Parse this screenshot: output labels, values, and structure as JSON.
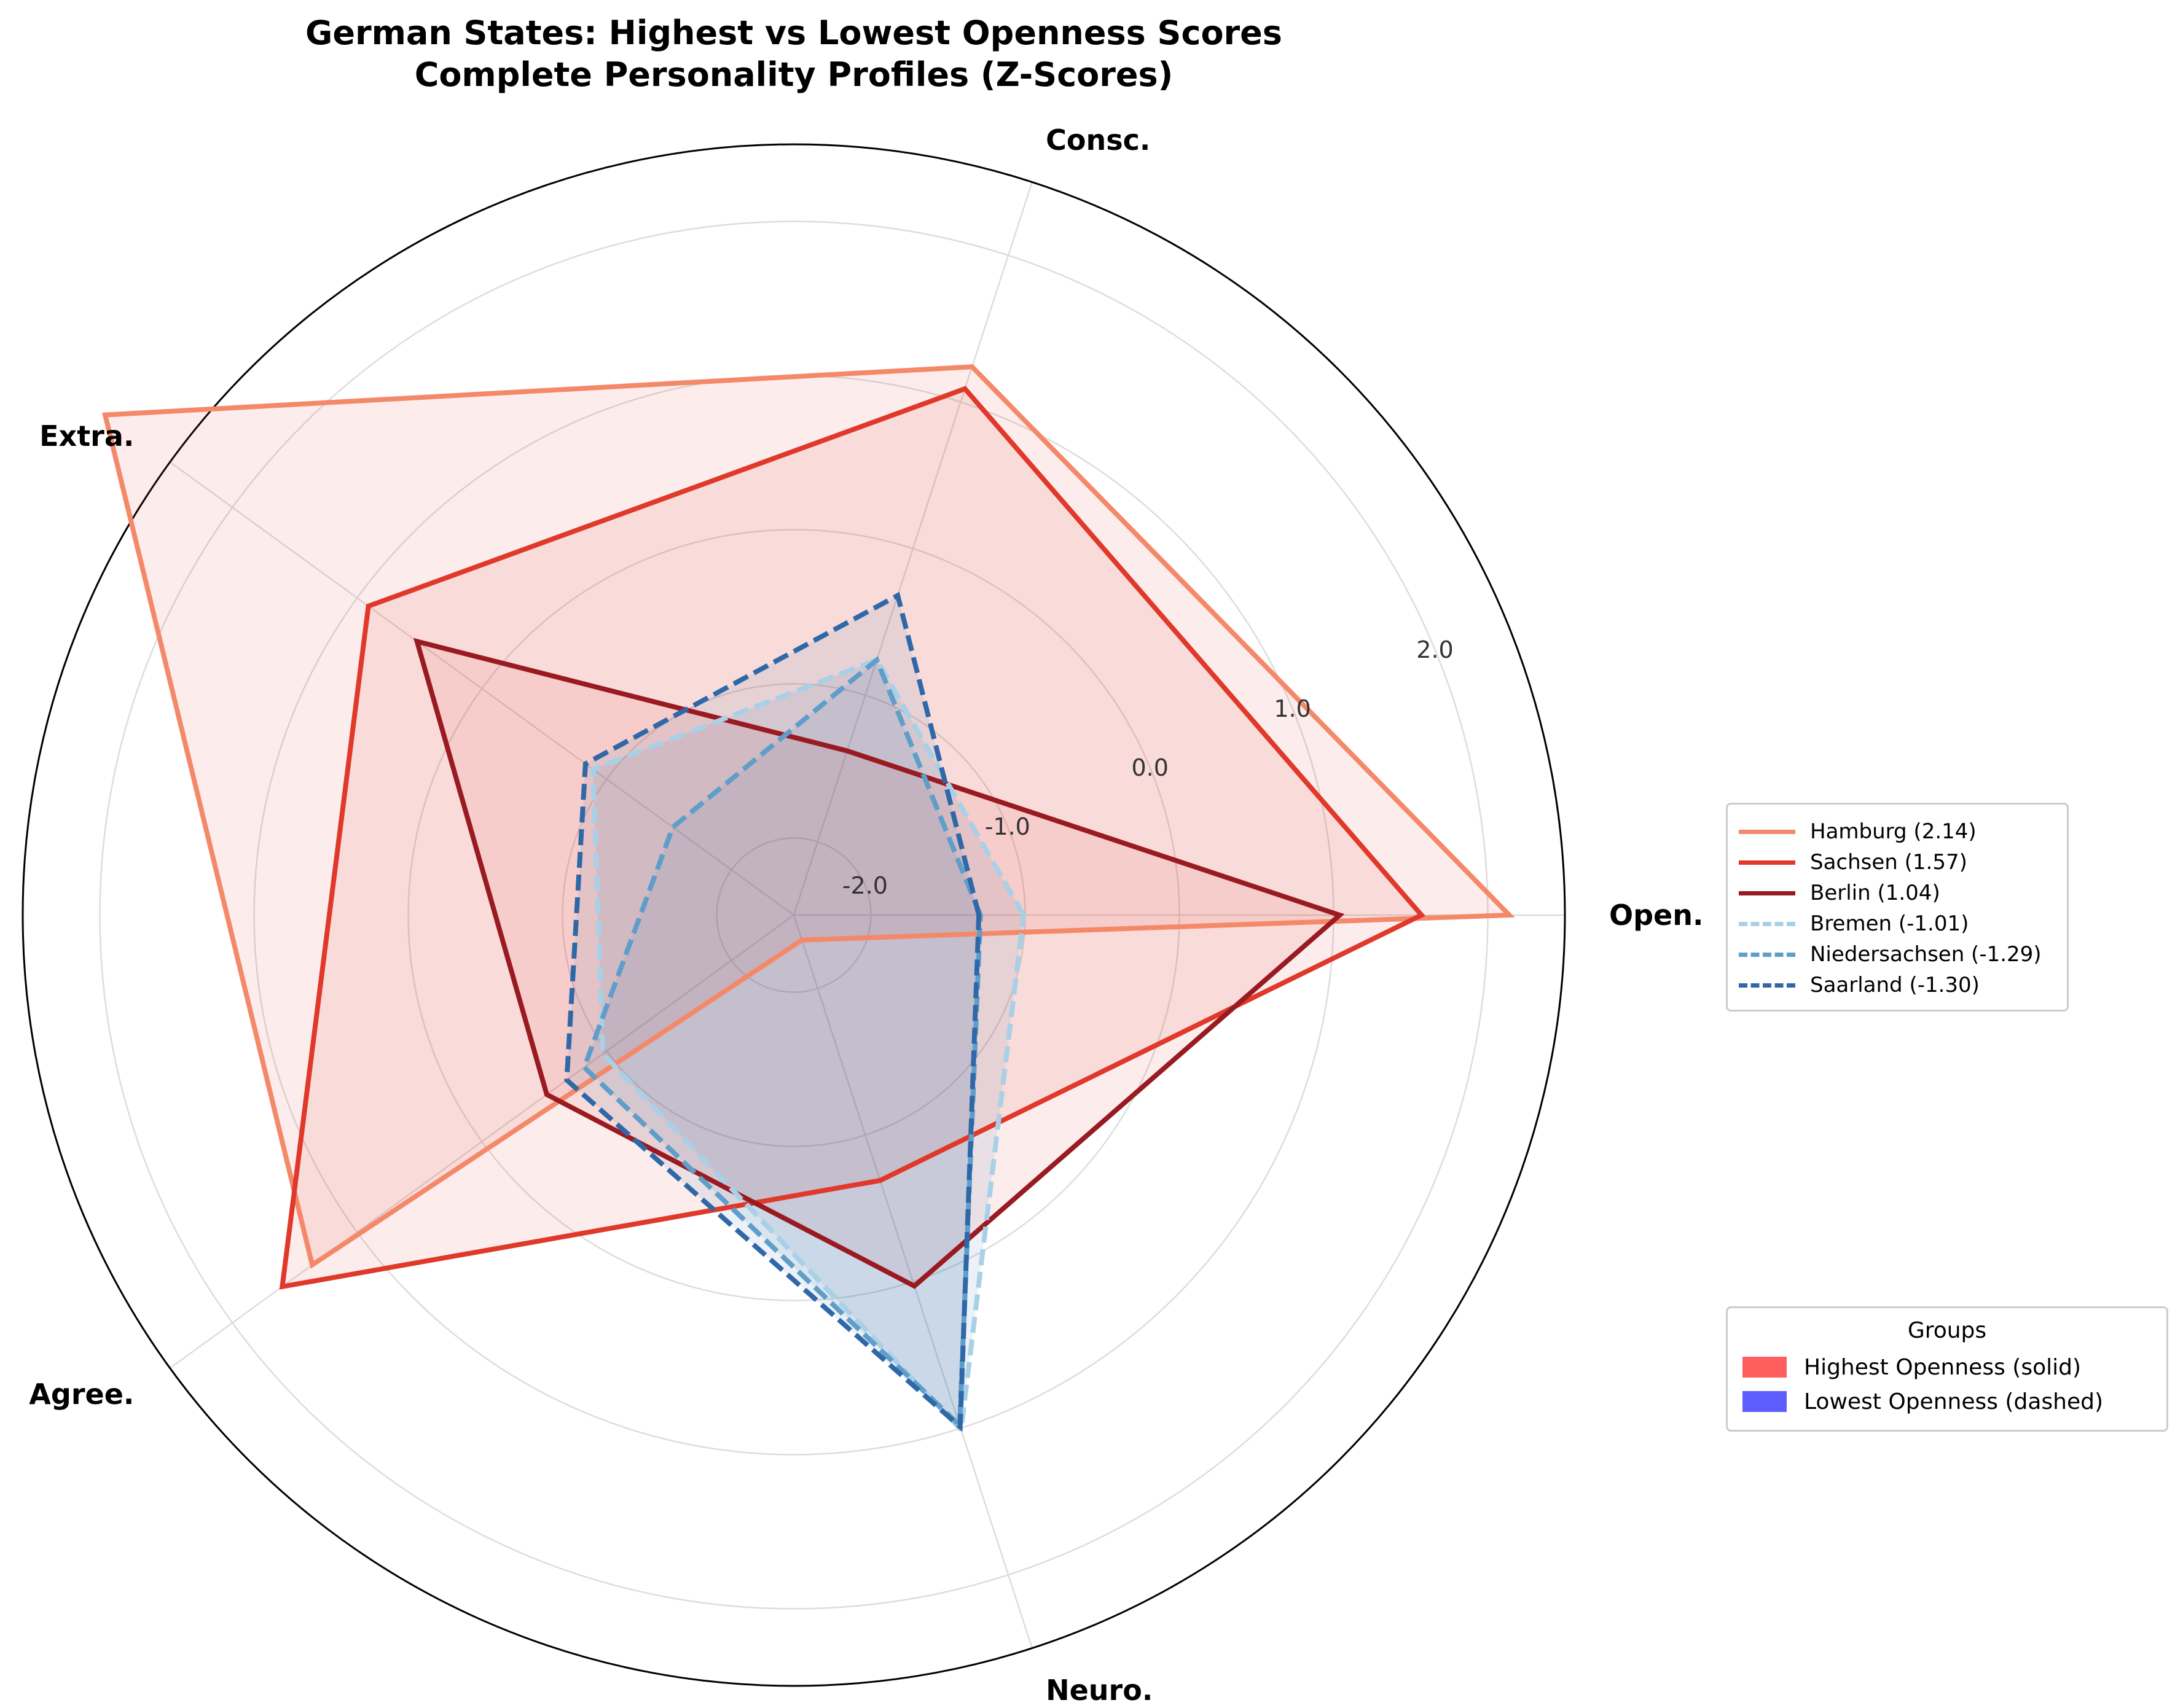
{
  "chart_data": {
    "type": "radar",
    "title": "German States: Highest vs Lowest Openness Scores",
    "subtitle": "Complete Personality Profiles (Z-Scores)",
    "axes": [
      "Open.",
      "Consc.",
      "Extra.",
      "Agree.",
      "Neuro."
    ],
    "radial_range": [
      -2.5,
      2.5
    ],
    "radial_ticks": [
      -2.0,
      -1.0,
      0.0,
      1.0,
      2.0
    ],
    "radial_tick_labels": [
      "-2.0",
      "-1.0",
      "0.0",
      "1.0",
      "2.0"
    ],
    "grid": true,
    "series": [
      {
        "name": "Hamburg (2.14)",
        "group": "high",
        "color": "#f4896a",
        "dash": false,
        "values": [
          2.14,
          1.24,
          3.02,
          1.36,
          -2.33
        ]
      },
      {
        "name": "Sachsen (1.57)",
        "group": "high",
        "color": "#e0392b",
        "dash": false,
        "values": [
          1.57,
          1.09,
          0.91,
          1.6,
          -0.69
        ]
      },
      {
        "name": "Berlin (1.04)",
        "group": "high",
        "color": "#9a1a22",
        "dash": false,
        "values": [
          1.04,
          -1.38,
          0.52,
          -0.52,
          0.03
        ]
      },
      {
        "name": "Bremen (-1.01)",
        "group": "low",
        "color": "#a8d0e6",
        "dash": true,
        "values": [
          -1.01,
          -0.76,
          -0.89,
          -0.97,
          1.01
        ]
      },
      {
        "name": "Niedersachsen (-1.29)",
        "group": "low",
        "color": "#5e9ec9",
        "dash": true,
        "values": [
          -1.29,
          -0.76,
          -1.53,
          -0.82,
          0.98
        ]
      },
      {
        "name": "Saarland (-1.30)",
        "group": "low",
        "color": "#2f68a8",
        "dash": true,
        "values": [
          -1.3,
          -0.32,
          -0.83,
          -0.68,
          0.99
        ]
      }
    ],
    "legend_series_placement": "right",
    "groups_legend": {
      "title": "Groups",
      "entries": [
        {
          "label": "Highest Openness (solid)",
          "color": "#ff4d4d"
        },
        {
          "label": "Lowest Openness (dashed)",
          "color": "#4d4dff"
        }
      ],
      "placement": "lower-right"
    },
    "colors": {
      "high_fill": "#e0392b",
      "low_fill": "#2f68a8",
      "grid": "#dddddd",
      "frame": "#000000"
    }
  }
}
